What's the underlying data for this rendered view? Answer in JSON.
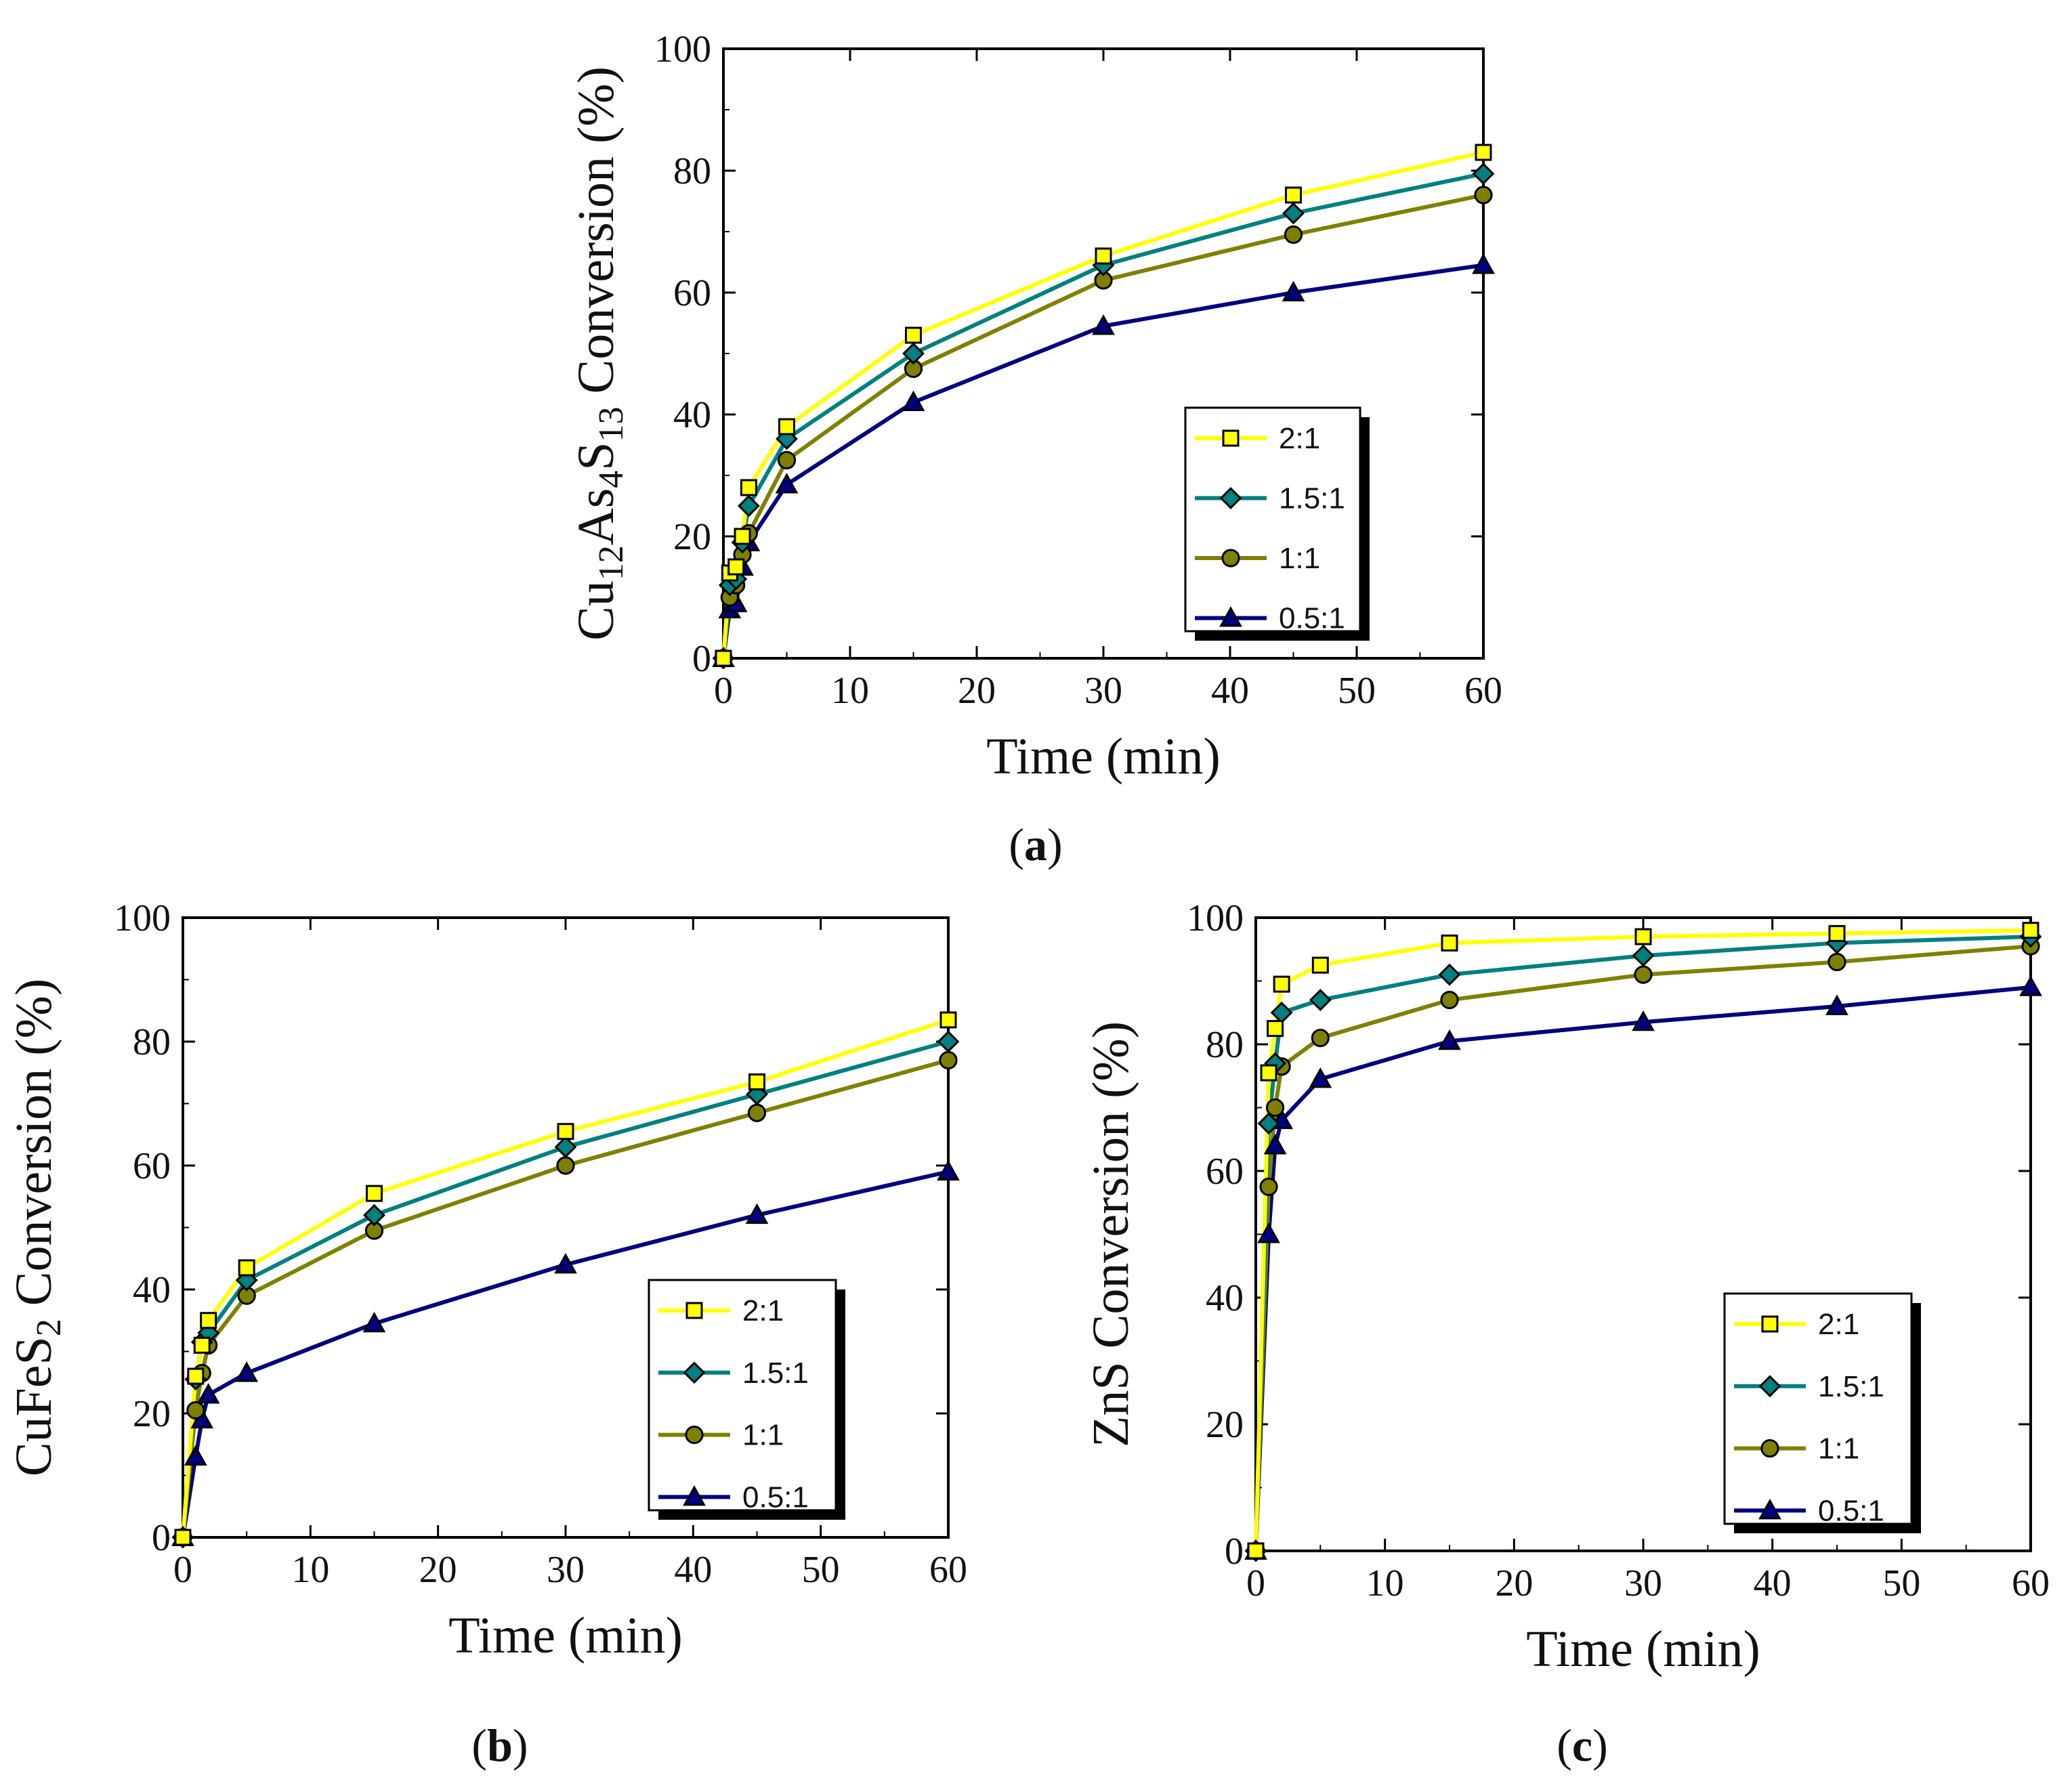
{
  "figure": {
    "labels": [
      "a",
      "b",
      "c"
    ]
  },
  "chart_data": [
    {
      "type": "line",
      "panel": "a",
      "ylabel_main": "Cu",
      "ylabel_sub1": "12",
      "ylabel_mid": "As",
      "ylabel_sub2": "4",
      "ylabel_mid2": "S",
      "ylabel_sub3": "13",
      "ylabel_tail": "Conversion (%)",
      "xlabel": "Time (min)",
      "xlim": [
        0,
        60
      ],
      "ylim": [
        0,
        100
      ],
      "xticks": [
        0,
        10,
        20,
        30,
        40,
        50,
        60
      ],
      "yticks": [
        0,
        20,
        40,
        60,
        80,
        100
      ],
      "legend": "bottom-right",
      "series": [
        {
          "name": "2:1",
          "color": "#ffff00",
          "marker": "square",
          "x": [
            0,
            0.5,
            1,
            1.5,
            2,
            5,
            15,
            30,
            45,
            60
          ],
          "y": [
            0,
            14,
            15,
            20,
            28,
            38,
            53,
            66,
            76,
            83
          ]
        },
        {
          "name": "1.5:1",
          "color": "#008080",
          "marker": "diamond",
          "x": [
            0,
            0.5,
            1,
            1.5,
            2,
            5,
            15,
            30,
            45,
            60
          ],
          "y": [
            0,
            12,
            13,
            19,
            25,
            36,
            50,
            64.5,
            73,
            79.5
          ]
        },
        {
          "name": "1:1",
          "color": "#808000",
          "marker": "circle",
          "x": [
            0,
            0.5,
            1,
            1.5,
            2,
            5,
            15,
            30,
            45,
            60
          ],
          "y": [
            0,
            10,
            12,
            17,
            20.5,
            32.5,
            47.5,
            62,
            69.5,
            76
          ]
        },
        {
          "name": "0.5:1",
          "color": "#000080",
          "marker": "triangle",
          "x": [
            0,
            0.5,
            1,
            1.5,
            2,
            5,
            15,
            30,
            45,
            60
          ],
          "y": [
            0,
            8,
            9,
            15,
            19,
            28.5,
            42,
            54.5,
            60,
            64.5
          ]
        }
      ]
    },
    {
      "type": "line",
      "panel": "b",
      "ylabel_main": "CuFeS",
      "ylabel_sub1": "2",
      "ylabel_tail": "Conversion (%)",
      "xlabel": "Time (min)",
      "xlim": [
        0,
        60
      ],
      "ylim": [
        0,
        100
      ],
      "xticks": [
        0,
        10,
        20,
        30,
        40,
        50,
        60
      ],
      "yticks": [
        0,
        20,
        40,
        60,
        80,
        100
      ],
      "legend": "bottom-right",
      "series": [
        {
          "name": "2:1",
          "color": "#ffff00",
          "marker": "square",
          "x": [
            0,
            1,
            1.5,
            2,
            5,
            15,
            30,
            45,
            60
          ],
          "y": [
            0,
            26,
            31,
            35,
            43.5,
            55.5,
            65.5,
            73.5,
            83.5
          ]
        },
        {
          "name": "1.5:1",
          "color": "#008080",
          "marker": "diamond",
          "x": [
            0,
            1,
            1.5,
            2,
            5,
            15,
            30,
            45,
            60
          ],
          "y": [
            0,
            25.5,
            31.5,
            33,
            41.5,
            52,
            63,
            71.5,
            80
          ]
        },
        {
          "name": "1:1",
          "color": "#808000",
          "marker": "circle",
          "x": [
            0,
            1,
            1.5,
            2,
            5,
            15,
            30,
            45,
            60
          ],
          "y": [
            0,
            20.5,
            26.5,
            31,
            39,
            49.5,
            60,
            68.5,
            77
          ]
        },
        {
          "name": "0.5:1",
          "color": "#000080",
          "marker": "triangle",
          "x": [
            0,
            1,
            1.5,
            2,
            5,
            15,
            30,
            45,
            60
          ],
          "y": [
            0,
            13,
            19,
            23,
            26.5,
            34.5,
            44,
            52,
            59
          ]
        }
      ]
    },
    {
      "type": "line",
      "panel": "c",
      "ylabel_main": "ZnS",
      "ylabel_tail": "Conversion (%)",
      "xlabel": "Time (min)",
      "xlim": [
        0,
        60
      ],
      "ylim": [
        0,
        100
      ],
      "xticks": [
        0,
        10,
        20,
        30,
        40,
        50,
        60
      ],
      "yticks": [
        0,
        20,
        40,
        60,
        80,
        100
      ],
      "legend": "bottom-right",
      "series": [
        {
          "name": "2:1",
          "color": "#ffff00",
          "marker": "square",
          "x": [
            0,
            1,
            1.5,
            2,
            5,
            15,
            30,
            45,
            60
          ],
          "y": [
            0,
            75.5,
            82.5,
            89.5,
            92.5,
            96,
            97,
            97.5,
            98
          ]
        },
        {
          "name": "1.5:1",
          "color": "#008080",
          "marker": "diamond",
          "x": [
            0,
            1,
            1.5,
            2,
            5,
            15,
            30,
            45,
            60
          ],
          "y": [
            0,
            67.5,
            77,
            85,
            87,
            91,
            94,
            96,
            97
          ]
        },
        {
          "name": "1:1",
          "color": "#808000",
          "marker": "circle",
          "x": [
            0,
            1,
            1.5,
            2,
            5,
            15,
            30,
            45,
            60
          ],
          "y": [
            0,
            57.5,
            70,
            76.5,
            81,
            87,
            91,
            93,
            95.5
          ]
        },
        {
          "name": "0.5:1",
          "color": "#000080",
          "marker": "triangle",
          "x": [
            0,
            1,
            1.5,
            2,
            5,
            15,
            30,
            45,
            60
          ],
          "y": [
            0,
            50,
            64,
            68,
            74.5,
            80.5,
            83.5,
            86,
            89
          ]
        }
      ]
    }
  ]
}
